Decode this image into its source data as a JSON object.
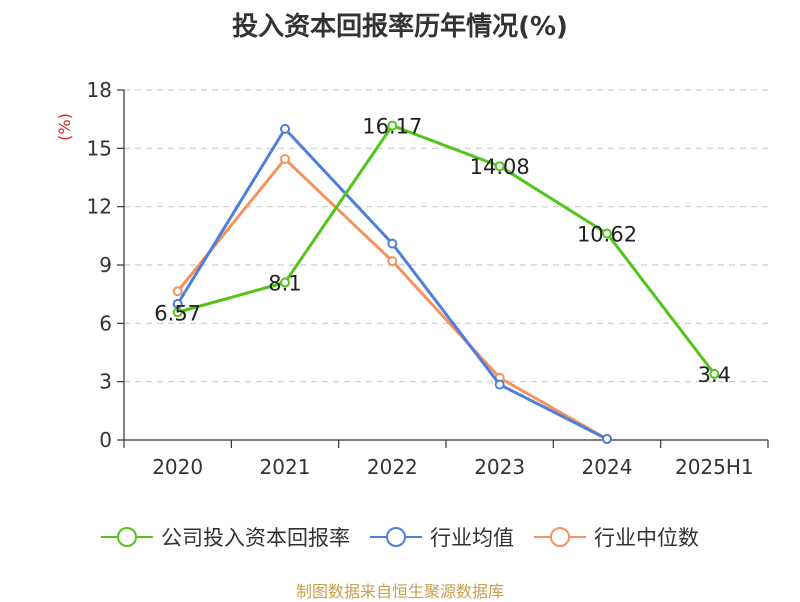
{
  "title": "投入资本回报率历年情况(%)",
  "source": "制图数据来自恒生聚源数据库",
  "chart_data": {
    "type": "line",
    "title": "投入资本回报率历年情况(%)",
    "ylabel": "(%)",
    "xlabel": "",
    "categories": [
      "2020",
      "2021",
      "2022",
      "2023",
      "2024",
      "2025H1"
    ],
    "ylim": [
      0,
      18
    ],
    "yticks": [
      0,
      3,
      6,
      9,
      12,
      15,
      18
    ],
    "grid": true,
    "legend_position": "bottom",
    "series": [
      {
        "name": "公司投入资本回报率",
        "color": "#52c41a",
        "values": [
          6.57,
          8.1,
          16.17,
          14.08,
          10.62,
          3.4
        ],
        "labels": [
          "6.57",
          "8.1",
          "16.17",
          "14.08",
          "10.62",
          "3.4"
        ]
      },
      {
        "name": "行业均值",
        "color": "#4e7fdb",
        "values": [
          7.0,
          16.0,
          10.1,
          2.85,
          0.05,
          null
        ]
      },
      {
        "name": "行业中位数",
        "color": "#f5925e",
        "values": [
          7.65,
          14.45,
          9.2,
          3.2,
          0.05,
          null
        ]
      }
    ]
  }
}
